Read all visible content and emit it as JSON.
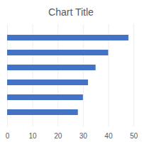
{
  "chart_data": {
    "type": "bar",
    "title": "Chart Title",
    "orientation": "horizontal",
    "categories": [
      null,
      null,
      null,
      null,
      null,
      null
    ],
    "values": [
      48,
      40,
      35,
      32,
      30,
      28
    ],
    "color": "#4472c4",
    "xlim": [
      0,
      50
    ],
    "xticks": [
      0,
      10,
      20,
      30,
      40,
      50
    ],
    "grid": true,
    "tick_labels": "x"
  }
}
